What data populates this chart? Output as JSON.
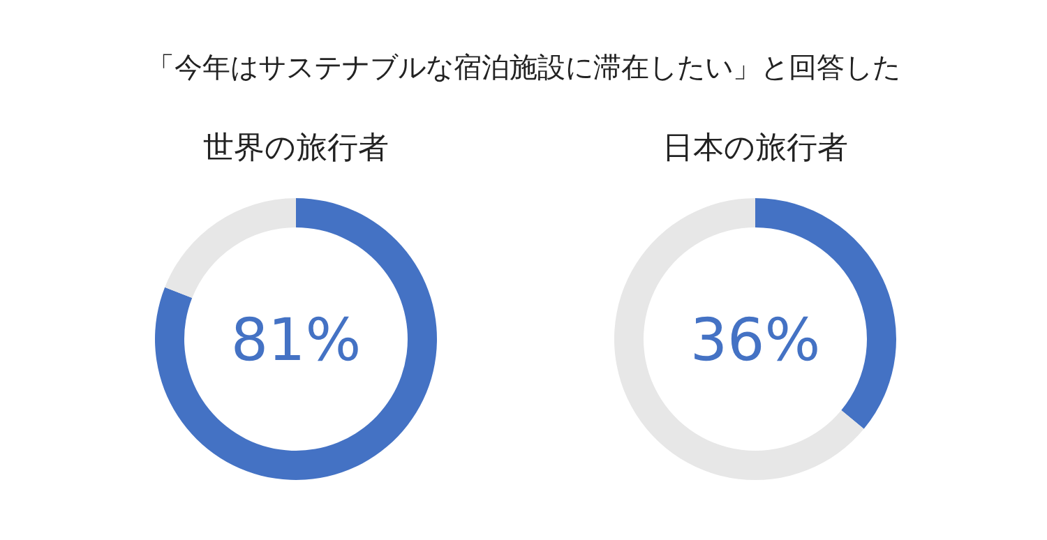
{
  "chart_data": [
    {
      "type": "donut",
      "title": "「今年はサステナブルな宿泊施設に滞在したい」と回答した",
      "subtitle": "世界の旅行者",
      "categories": [
        null,
        null
      ],
      "values": [
        81,
        19
      ],
      "colors": [
        "#4472c4",
        "#e7e7e7"
      ],
      "annotations": [
        "81%"
      ]
    },
    {
      "type": "donut",
      "subtitle": "日本の旅行者",
      "categories": [
        null,
        null
      ],
      "values": [
        36,
        64
      ],
      "colors": [
        "#4472c4",
        "#e7e7e7"
      ],
      "annotations": [
        "36%"
      ]
    }
  ]
}
